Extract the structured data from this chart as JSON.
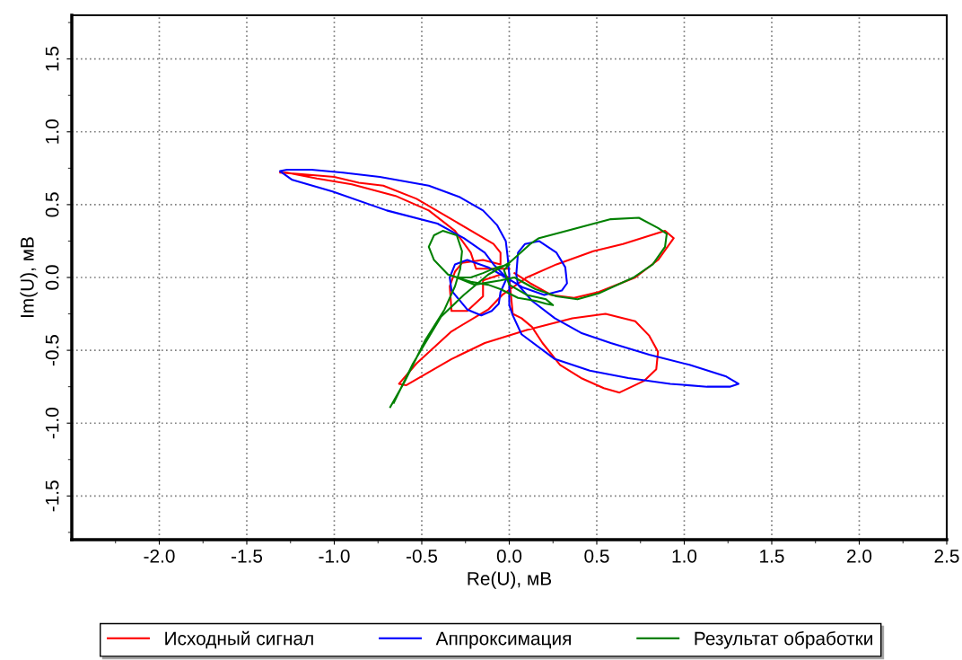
{
  "chart_data": {
    "type": "line",
    "xlabel": "Re(U), мВ",
    "ylabel": "Im(U), мВ",
    "xlim": [
      -2.5,
      2.5
    ],
    "ylim": [
      -1.8,
      1.8
    ],
    "xticks": [
      {
        "value": -2.25,
        "label": null
      },
      {
        "value": -2.0,
        "label": "-2.0"
      },
      {
        "value": -1.75,
        "label": null
      },
      {
        "value": -1.5,
        "label": "-1.5"
      },
      {
        "value": -1.25,
        "label": null
      },
      {
        "value": -1.0,
        "label": "-1.0"
      },
      {
        "value": -0.75,
        "label": null
      },
      {
        "value": -0.5,
        "label": "-0.5"
      },
      {
        "value": -0.25,
        "label": null
      },
      {
        "value": 0.0,
        "label": "0.0"
      },
      {
        "value": 0.25,
        "label": null
      },
      {
        "value": 0.5,
        "label": "0.5"
      },
      {
        "value": 0.75,
        "label": null
      },
      {
        "value": 1.0,
        "label": "1.0"
      },
      {
        "value": 1.25,
        "label": null
      },
      {
        "value": 1.5,
        "label": "1.5"
      },
      {
        "value": 1.75,
        "label": null
      },
      {
        "value": 2.0,
        "label": "2.0"
      },
      {
        "value": 2.25,
        "label": null
      },
      {
        "value": 2.5,
        "label": "2.5"
      }
    ],
    "yticks": [
      {
        "value": -1.75,
        "label": null
      },
      {
        "value": -1.5,
        "label": "-1.5"
      },
      {
        "value": -1.25,
        "label": null
      },
      {
        "value": -1.0,
        "label": "-1.0"
      },
      {
        "value": -0.75,
        "label": null
      },
      {
        "value": -0.5,
        "label": "-0.5"
      },
      {
        "value": -0.25,
        "label": null
      },
      {
        "value": 0.0,
        "label": "0.0"
      },
      {
        "value": 0.25,
        "label": null
      },
      {
        "value": 0.5,
        "label": "0.5"
      },
      {
        "value": 0.75,
        "label": null
      },
      {
        "value": 1.0,
        "label": "1.0"
      },
      {
        "value": 1.25,
        "label": null
      },
      {
        "value": 1.5,
        "label": "1.5"
      },
      {
        "value": 1.75,
        "label": null
      }
    ],
    "grid": true,
    "legend": "bottom",
    "marker": "none",
    "line_style": "solid",
    "series": [
      {
        "name": "Исходный сигнал",
        "color": "#ff0000",
        "x": [
          0.0,
          -0.19,
          -0.22,
          -0.31,
          -0.46,
          -0.65,
          -0.9,
          -1.1,
          -1.27,
          -1.31,
          -1.2,
          -1.0,
          -0.86,
          -0.72,
          -0.53,
          -0.33,
          -0.09,
          -0.05,
          -0.05,
          -0.15,
          -0.27,
          -0.31,
          -0.34,
          -0.33,
          -0.24,
          -0.15,
          -0.15,
          -0.05,
          0.0,
          0.02,
          0.07,
          0.13,
          0.19,
          0.29,
          0.41,
          0.54,
          0.63,
          0.77,
          0.84,
          0.85,
          0.8,
          0.72,
          0.55,
          0.36,
          0.1,
          -0.14,
          -0.33,
          -0.59,
          -0.63,
          -0.53,
          -0.33,
          -0.12,
          -0.04,
          0.1,
          0.27,
          0.48,
          0.65,
          0.89,
          0.94,
          0.85,
          0.72,
          0.51,
          0.37,
          0.24,
          0.12,
          0.03
        ],
        "values": [
          0.06,
          0.06,
          0.17,
          0.32,
          0.46,
          0.56,
          0.64,
          0.68,
          0.72,
          0.72,
          0.71,
          0.69,
          0.65,
          0.63,
          0.54,
          0.4,
          0.23,
          0.17,
          0.09,
          0.12,
          0.1,
          0.04,
          -0.06,
          -0.23,
          -0.23,
          -0.13,
          -0.02,
          0.02,
          0.0,
          -0.25,
          -0.28,
          -0.34,
          -0.45,
          -0.6,
          -0.69,
          -0.76,
          -0.79,
          -0.71,
          -0.63,
          -0.51,
          -0.4,
          -0.3,
          -0.25,
          -0.28,
          -0.36,
          -0.45,
          -0.56,
          -0.74,
          -0.73,
          -0.59,
          -0.37,
          -0.22,
          -0.12,
          0.0,
          0.09,
          0.18,
          0.23,
          0.32,
          0.27,
          0.12,
          0.0,
          -0.1,
          -0.14,
          -0.12,
          -0.04,
          0.03
        ]
      },
      {
        "name": "Аппроксимация",
        "color": "#0000ff",
        "x": [
          0.0,
          -0.09,
          -0.14,
          -0.26,
          -0.41,
          -0.7,
          -1.01,
          -1.24,
          -1.31,
          -1.27,
          -1.13,
          -0.95,
          -0.74,
          -0.46,
          -0.28,
          -0.15,
          -0.07,
          -0.02,
          -0.01,
          0.0,
          0.0,
          0.02,
          0.07,
          0.26,
          0.46,
          0.68,
          0.92,
          1.13,
          1.26,
          1.31,
          1.24,
          1.03,
          0.8,
          0.58,
          0.41,
          0.26,
          0.13,
          0.05,
          0.04,
          0.05,
          0.09,
          0.17,
          0.27,
          0.32,
          0.33,
          0.3,
          0.2,
          0.08,
          -0.02,
          -0.12,
          -0.24,
          -0.31,
          -0.34,
          -0.33,
          -0.24,
          -0.16,
          -0.1,
          -0.06,
          -0.05,
          -0.02
        ],
        "values": [
          -0.02,
          0.09,
          0.17,
          0.27,
          0.37,
          0.46,
          0.59,
          0.67,
          0.73,
          0.74,
          0.74,
          0.72,
          0.69,
          0.63,
          0.55,
          0.46,
          0.36,
          0.25,
          0.15,
          0.02,
          -0.19,
          -0.26,
          -0.39,
          -0.56,
          -0.64,
          -0.69,
          -0.73,
          -0.75,
          -0.75,
          -0.73,
          -0.68,
          -0.6,
          -0.53,
          -0.45,
          -0.38,
          -0.28,
          -0.16,
          -0.05,
          0.02,
          0.17,
          0.23,
          0.25,
          0.17,
          0.07,
          -0.04,
          -0.09,
          -0.12,
          -0.07,
          0.0,
          0.07,
          0.12,
          0.09,
          0.0,
          -0.09,
          -0.22,
          -0.26,
          -0.23,
          -0.18,
          -0.1,
          -0.02
        ]
      },
      {
        "name": "Результат обработки",
        "color": "#008000",
        "x": [
          -0.68,
          -0.6,
          -0.48,
          -0.37,
          -0.31,
          -0.28,
          -0.27,
          -0.3,
          -0.38,
          -0.43,
          -0.46,
          -0.43,
          -0.35,
          -0.22,
          -0.12,
          -0.05,
          0.05,
          0.15,
          0.21,
          0.25,
          0.21,
          0.1,
          0.0,
          -0.03,
          0.0,
          -0.07,
          -0.15,
          -0.22,
          -0.3,
          -0.2,
          -0.05,
          0.03,
          0.15,
          0.27,
          0.39,
          0.51,
          0.71,
          0.82,
          0.89,
          0.9,
          0.85,
          0.74,
          0.58,
          0.17,
          0.12,
          0.0,
          -0.12,
          -0.26,
          -0.39,
          -0.55,
          -0.66
        ],
        "values": [
          -0.89,
          -0.72,
          -0.43,
          -0.22,
          -0.06,
          0.06,
          0.18,
          0.29,
          0.32,
          0.29,
          0.21,
          0.12,
          0.02,
          -0.03,
          -0.05,
          -0.08,
          -0.14,
          -0.16,
          -0.18,
          -0.19,
          -0.15,
          -0.12,
          -0.05,
          0.05,
          0.09,
          0.07,
          0.03,
          0.0,
          0.0,
          -0.05,
          -0.02,
          0.0,
          -0.08,
          -0.13,
          -0.15,
          -0.11,
          0.0,
          0.09,
          0.21,
          0.3,
          0.34,
          0.41,
          0.4,
          0.27,
          0.23,
          0.1,
          0.02,
          -0.12,
          -0.27,
          -0.59,
          -0.86
        ]
      }
    ]
  }
}
